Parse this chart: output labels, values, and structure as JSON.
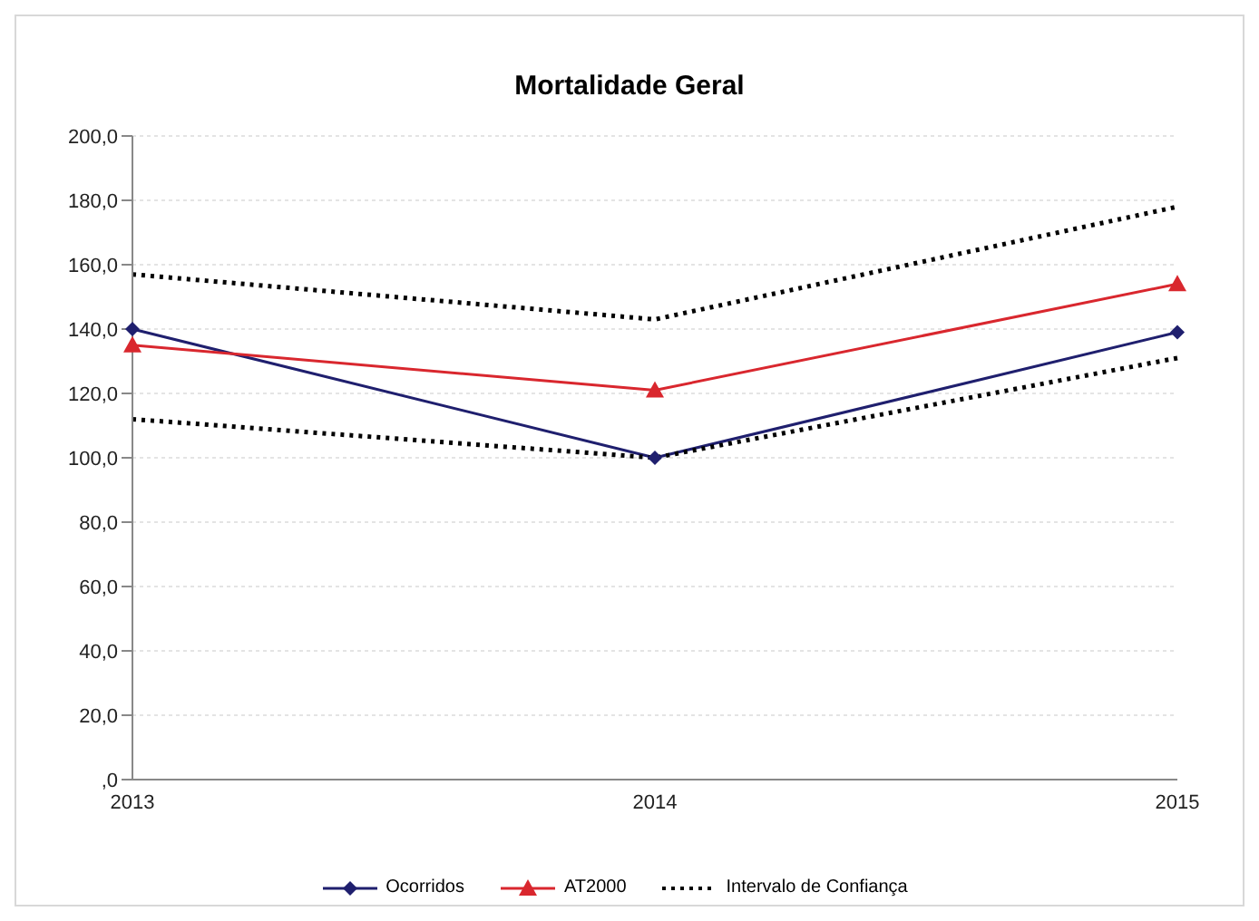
{
  "chart_data": {
    "type": "line",
    "title": "Mortalidade Geral",
    "categories": [
      "2013",
      "2014",
      "2015"
    ],
    "series": [
      {
        "name": "Ocorridos",
        "color": "#1f1f6e",
        "values": [
          140,
          100,
          139
        ],
        "marker": "diamond",
        "line_style": "solid"
      },
      {
        "name": "AT2000",
        "color": "#d9272e",
        "values": [
          135,
          121,
          154
        ],
        "marker": "triangle",
        "line_style": "solid"
      },
      {
        "name": "Intervalo de Confiança",
        "color": "#000000",
        "values": [
          157,
          143,
          178
        ],
        "marker": "none",
        "line_style": "dotted"
      },
      {
        "color": "#000000",
        "values": [
          112,
          100,
          131
        ],
        "marker": "none",
        "line_style": "dotted"
      }
    ],
    "ylim": [
      0,
      200
    ],
    "yticks": [
      {
        "value": 0,
        "label": ",0"
      },
      {
        "value": 20,
        "label": "20,0"
      },
      {
        "value": 40,
        "label": "40,0"
      },
      {
        "value": 60,
        "label": "60,0"
      },
      {
        "value": 80,
        "label": "80,0"
      },
      {
        "value": 100,
        "label": "100,0"
      },
      {
        "value": 120,
        "label": "120,0"
      },
      {
        "value": 140,
        "label": "140,0"
      },
      {
        "value": 160,
        "label": "160,0"
      },
      {
        "value": 180,
        "label": "180,0"
      },
      {
        "value": 200,
        "label": "200,0"
      }
    ],
    "grid": "y",
    "legend": "bottom"
  }
}
